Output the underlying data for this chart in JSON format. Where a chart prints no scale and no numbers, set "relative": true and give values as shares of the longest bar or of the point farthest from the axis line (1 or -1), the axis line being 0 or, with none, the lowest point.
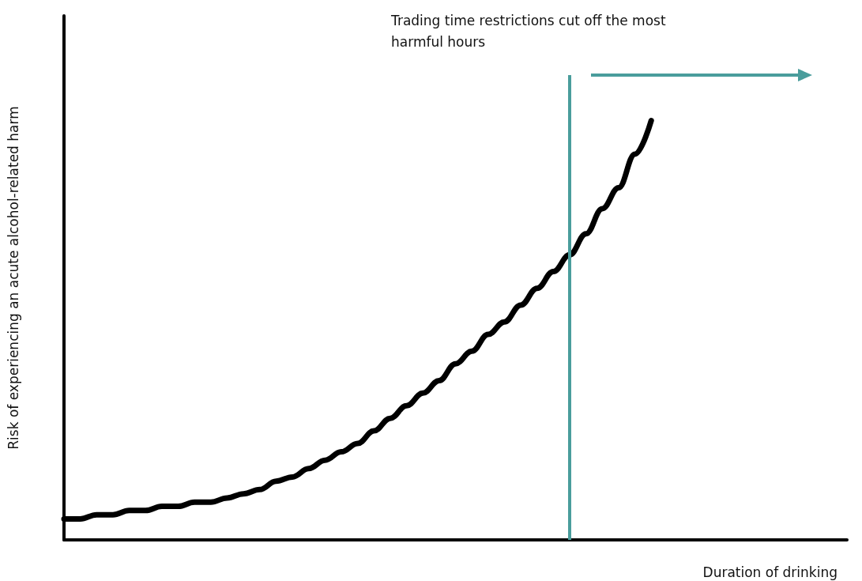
{
  "chart_data": {
    "type": "line",
    "relative": true,
    "xlabel": "Duration of drinking",
    "ylabel": "Risk of experiencing an acute alcohol-related harm",
    "categories": [
      null,
      null,
      null,
      null,
      null,
      null,
      null,
      null,
      null,
      null,
      null,
      null,
      null,
      null,
      null,
      null,
      null,
      null,
      null,
      null,
      null,
      null,
      null,
      null,
      null,
      null,
      null,
      null,
      null,
      null,
      null,
      null,
      null,
      null,
      null,
      null,
      null,
      null,
      null,
      null,
      null,
      null,
      null,
      null,
      null,
      null,
      null,
      null,
      null
    ],
    "series": [
      {
        "color": "#000000",
        "values": [
          0.05,
          0.05,
          0.06,
          0.06,
          0.07,
          0.07,
          0.08,
          0.08,
          0.09,
          0.09,
          0.1,
          0.11,
          0.12,
          0.14,
          0.15,
          0.17,
          0.19,
          0.21,
          0.23,
          0.26,
          0.29,
          0.32,
          0.35,
          0.38,
          0.42,
          0.45,
          0.49,
          0.52,
          0.56,
          0.6,
          0.64,
          0.68,
          0.73,
          0.79,
          0.84,
          0.92,
          1,
          null,
          null,
          null,
          null,
          null,
          null,
          null,
          null,
          null,
          null,
          null,
          null
        ]
      }
    ],
    "annotations": [
      "Trading time restrictions cut off the most\nharmful hours"
    ],
    "marker": "none",
    "line_style": "solid",
    "grid": false
  }
}
